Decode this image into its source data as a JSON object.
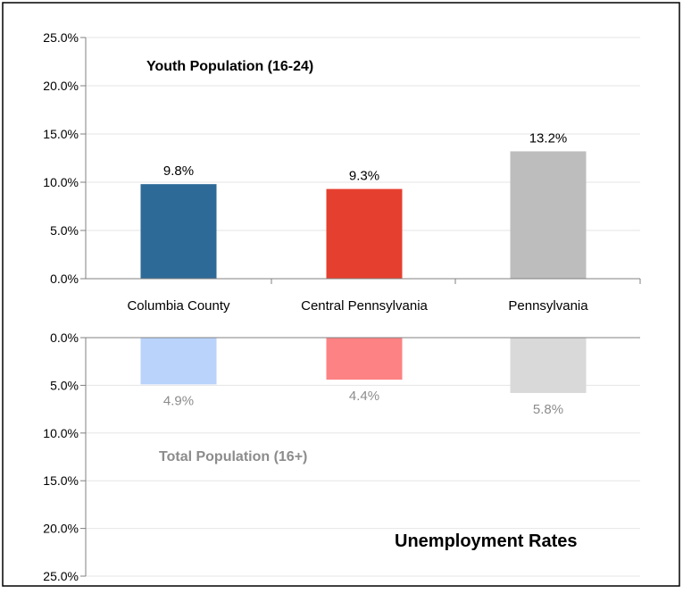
{
  "chart_data": {
    "type": "bar",
    "categories": [
      "Columbia County",
      "Central Pennsylvania",
      "Pennsylvania"
    ],
    "title": "Unemployment Rates",
    "top_panel": {
      "label": "Youth Population (16-24)",
      "values": [
        9.8,
        9.3,
        13.2
      ],
      "value_labels": [
        "9.8%",
        "9.3%",
        "13.2%"
      ],
      "colors": [
        "#2e6a97",
        "#e5402f",
        "#bdbdbd"
      ],
      "ylim": [
        0,
        25
      ],
      "ticks": [
        "0.0%",
        "5.0%",
        "10.0%",
        "15.0%",
        "20.0%",
        "25.0%"
      ]
    },
    "bottom_panel": {
      "label": "Total Population (16+)",
      "values": [
        4.9,
        4.4,
        5.8
      ],
      "value_labels": [
        "4.9%",
        "4.4%",
        "5.8%"
      ],
      "colors": [
        "#b9d3fb",
        "#fd8283",
        "#d9d9d9"
      ],
      "ylim": [
        0,
        25
      ],
      "ticks": [
        "0.0%",
        "5.0%",
        "10.0%",
        "15.0%",
        "20.0%",
        "25.0%"
      ],
      "inverted": true
    },
    "grid": true
  }
}
